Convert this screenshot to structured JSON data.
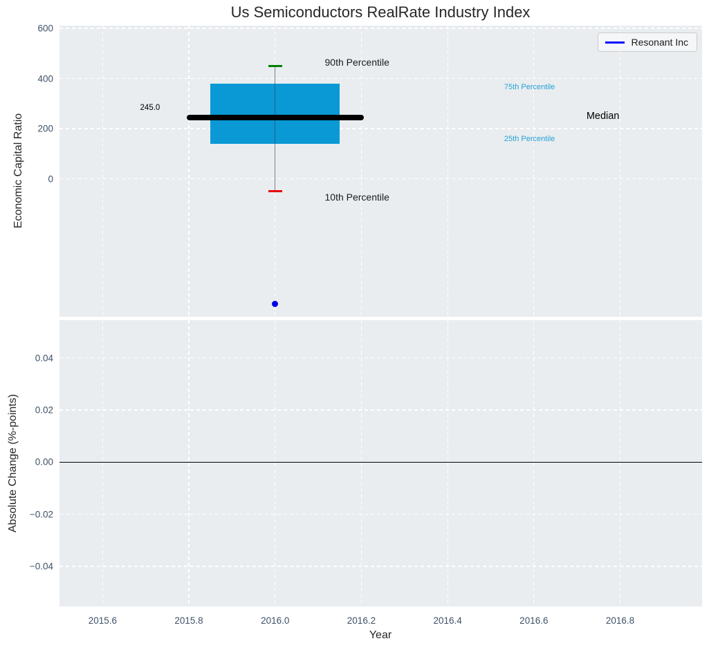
{
  "figure": {
    "background": "#ffffff",
    "axes_background": "#e9edf0",
    "grid_color": "#ffffff",
    "tick_color": "#3e5066",
    "text_color": "#262626"
  },
  "chart_data": [
    {
      "type": "boxplot",
      "title": "Us Semiconductors RealRate Industry Index",
      "ylabel": "Economic Capital Ratio",
      "xlim": [
        2015.5,
        2016.99
      ],
      "ylim": [
        -550,
        611
      ],
      "yticks": [
        0,
        200,
        400,
        600
      ],
      "ytick_labels": [
        "0",
        "200",
        "400",
        "600"
      ],
      "xticks": [
        2015.6,
        2015.8,
        2016.0,
        2016.2,
        2016.4,
        2016.6,
        2016.8
      ],
      "xtick_labels": [],
      "grid": true,
      "legend": {
        "label": "Resonant Inc",
        "line_color": "#0000ff",
        "position": "upper right"
      },
      "box": {
        "x": 2016.0,
        "q1": 140,
        "median": 245,
        "q3": 380,
        "whisker_low": -50,
        "whisker_high": 450,
        "box_width": 0.3,
        "median_line_span": 0.41,
        "cap_span": 0.032,
        "median_label": "245.0",
        "box_color": "#0a99d5",
        "median_color": "#000000",
        "whisker_color": "#7f7f7f",
        "cap_high_color": "#008000",
        "cap_low_color": "#e80000"
      },
      "point": {
        "x": 2016.0,
        "y": -500,
        "color": "#0000ee",
        "series": "Resonant Inc"
      },
      "annotations": [
        {
          "text": "245.0",
          "x": 2015.71,
          "y": 282,
          "color": "#000000",
          "size": 11.5
        },
        {
          "text": "90th Percentile",
          "x": 2016.19,
          "y": 466,
          "color": "#1a1a1a",
          "size": 14
        },
        {
          "text": "10th Percentile",
          "x": 2016.19,
          "y": -72,
          "color": "#1a1a1a",
          "size": 14
        },
        {
          "text": "75th Percentile",
          "x": 2016.59,
          "y": 366,
          "color": "#26a0d5",
          "size": 11
        },
        {
          "text": "Median",
          "x": 2016.76,
          "y": 250,
          "color": "#000000",
          "size": 14.5
        },
        {
          "text": "25th Percentile",
          "x": 2016.59,
          "y": 159,
          "color": "#26a0d5",
          "size": 11
        }
      ]
    },
    {
      "type": "line",
      "ylabel": "Absolute Change (%-points)",
      "xlabel": "Year",
      "xlim": [
        2015.5,
        2016.99
      ],
      "ylim": [
        -0.0554,
        0.0545
      ],
      "yticks": [
        -0.04,
        -0.02,
        0.0,
        0.02,
        0.04
      ],
      "ytick_labels": [
        "−0.04",
        "−0.02",
        "0.00",
        "0.02",
        "0.04"
      ],
      "xticks": [
        2015.6,
        2015.8,
        2016.0,
        2016.2,
        2016.4,
        2016.6,
        2016.8
      ],
      "xtick_labels": [
        "2015.6",
        "2015.8",
        "2016.0",
        "2016.2",
        "2016.4",
        "2016.6",
        "2016.8"
      ],
      "grid": true,
      "hline": {
        "y": 0.0,
        "color": "#000000",
        "width": 1.5
      }
    }
  ]
}
